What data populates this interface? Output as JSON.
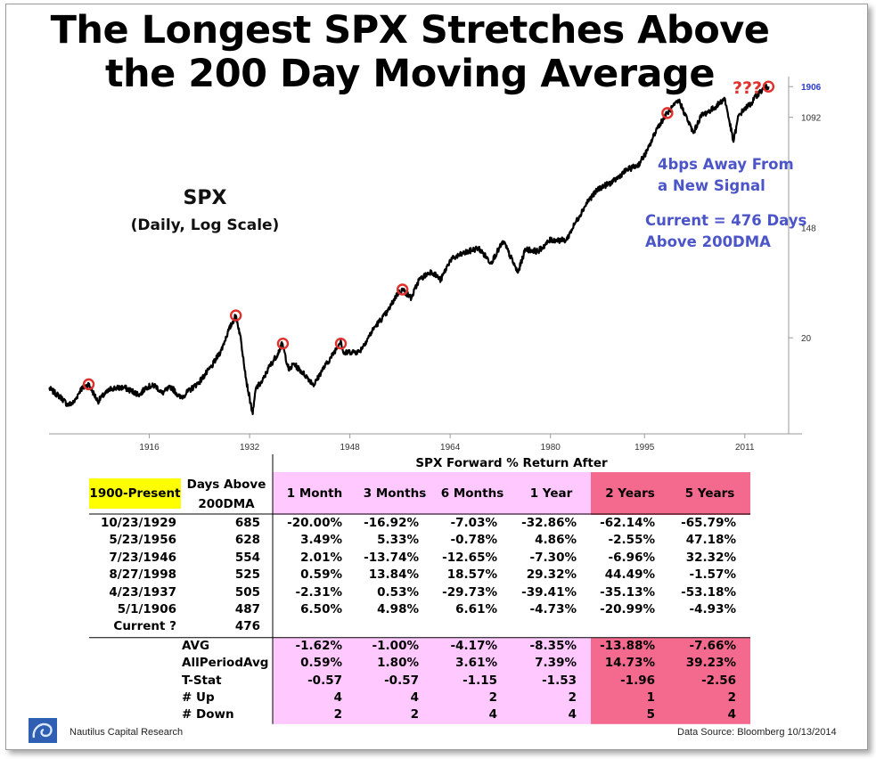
{
  "title_line1": "The Longest SPX Stretches Above",
  "title_line2": "the 200 Day Moving Average",
  "question_marks": "???",
  "spx_label": "SPX",
  "spx_sublabel": "(Daily, Log Scale)",
  "note1_line1": "4bps Away From",
  "note1_line2": "a New Signal",
  "note2_line1": "Current = 476 Days",
  "note2_line2": "Above 200DMA",
  "colors": {
    "line": "#000000",
    "circle": "#e0302c",
    "note": "#4b55c8",
    "last_tick": "#2a3ad0",
    "yellow": "#ffff00",
    "pink": "#ffc8ff",
    "red": "#f46a8e"
  },
  "chart_data": {
    "type": "line",
    "title": "The Longest SPX Stretches Above the 200 Day Moving Average",
    "series": [
      {
        "name": "SPX",
        "scale": "log",
        "x": [
          1900.0,
          1902.0,
          1903.0,
          1904.0,
          1905.0,
          1906.33,
          1907.8,
          1908.5,
          1910.0,
          1912.0,
          1914.5,
          1915.5,
          1917.0,
          1918.0,
          1919.5,
          1921.0,
          1924.0,
          1926.0,
          1927.5,
          1928.5,
          1929.8,
          1930.5,
          1931.0,
          1931.5,
          1932.5,
          1933.0,
          1934.0,
          1935.0,
          1936.5,
          1937.2,
          1938.3,
          1939.0,
          1941.0,
          1942.3,
          1943.5,
          1945.0,
          1946.55,
          1947.0,
          1948.0,
          1949.5,
          1950.5,
          1952.0,
          1954.0,
          1955.5,
          1956.4,
          1957.8,
          1959.0,
          1961.0,
          1962.5,
          1964.0,
          1966.0,
          1968.5,
          1970.5,
          1972.5,
          1974.8,
          1976.0,
          1978.0,
          1980.0,
          1982.5,
          1984.0,
          1986.0,
          1987.7,
          1990.0,
          1992.0,
          1994.0,
          1995.5,
          1997.0,
          1998.65,
          2000.5,
          2002.8,
          2004.0,
          2006.0,
          2007.8,
          2009.2,
          2010.0,
          2011.0,
          2012.0,
          2013.0,
          2014.0,
          2014.8
        ],
        "values": [
          8.0,
          6.7,
          5.9,
          6.2,
          7.8,
          8.6,
          6.3,
          6.9,
          8.0,
          8.1,
          7.1,
          8.2,
          8.4,
          7.3,
          8.2,
          6.7,
          9.0,
          12.0,
          16.0,
          22.0,
          30.0,
          21.0,
          14.0,
          9.0,
          5.0,
          8.0,
          9.0,
          11.5,
          15.0,
          18.0,
          11.0,
          12.5,
          10.0,
          8.5,
          11.0,
          14.0,
          19.0,
          15.0,
          15.5,
          15.5,
          18.5,
          24.5,
          32.0,
          44.0,
          48.0,
          41.0,
          57.0,
          67.0,
          57.0,
          82.0,
          92.0,
          102.0,
          78.0,
          115.0,
          65.0,
          100.0,
          96.0,
          118.0,
          117.0,
          162.0,
          240.0,
          300.0,
          340.0,
          415.0,
          460.0,
          600.0,
          900.0,
          1180.0,
          1480.0,
          820.0,
          1120.0,
          1280.0,
          1540.0,
          700.0,
          1120.0,
          1280.0,
          1400.0,
          1650.0,
          1830.0,
          1906.0
        ]
      }
    ],
    "signal_markers": [
      {
        "date": "5/1/1906",
        "x": 1906.33,
        "value": 8.6
      },
      {
        "date": "10/23/1929",
        "x": 1929.81,
        "value": 30.0
      },
      {
        "date": "4/23/1937",
        "x": 1937.31,
        "value": 18.0
      },
      {
        "date": "7/23/1946",
        "x": 1946.56,
        "value": 18.0
      },
      {
        "date": "5/23/1956",
        "x": 1956.39,
        "value": 48.0
      },
      {
        "date": "8/27/1998",
        "x": 1998.65,
        "value": 1180.0
      },
      {
        "date": "10/13/2014",
        "x": 2014.78,
        "value": 1906.0
      }
    ],
    "x_ticks": [
      "1916",
      "1932",
      "1948",
      "1964",
      "1980",
      "1995",
      "2011"
    ],
    "x_tick_values": [
      1916,
      1932,
      1948,
      1964,
      1980,
      1995,
      2011
    ],
    "y_ticks": [
      "20",
      "148",
      "1092",
      "1906"
    ],
    "y_tick_values": [
      20,
      148,
      1092,
      1906
    ],
    "xlim": [
      1900,
      2018
    ],
    "ylim": [
      3.5,
      2600
    ],
    "y_scale": "log",
    "grid": false
  },
  "table": {
    "header": "SPX Forward % Return After",
    "period_label": "1900-Present",
    "days_label_1": "Days Above",
    "days_label_2": "200DMA",
    "columns": [
      "1 Month",
      "3 Months",
      "6 Months",
      "1 Year",
      "2 Years",
      "5 Years"
    ],
    "rows": [
      {
        "date": "10/23/1929",
        "days": "685",
        "vals": [
          "-20.00%",
          "-16.92%",
          "-7.03%",
          "-32.86%",
          "-62.14%",
          "-65.79%"
        ]
      },
      {
        "date": "5/23/1956",
        "days": "628",
        "vals": [
          "3.49%",
          "5.33%",
          "-0.78%",
          "4.86%",
          "-2.55%",
          "47.18%"
        ]
      },
      {
        "date": "7/23/1946",
        "days": "554",
        "vals": [
          "2.01%",
          "-13.74%",
          "-12.65%",
          "-7.30%",
          "-6.96%",
          "32.32%"
        ]
      },
      {
        "date": "8/27/1998",
        "days": "525",
        "vals": [
          "0.59%",
          "13.84%",
          "18.57%",
          "29.32%",
          "44.49%",
          "-1.57%"
        ]
      },
      {
        "date": "4/23/1937",
        "days": "505",
        "vals": [
          "-2.31%",
          "0.53%",
          "-29.73%",
          "-39.41%",
          "-35.13%",
          "-53.18%"
        ]
      },
      {
        "date": "5/1/1906",
        "days": "487",
        "vals": [
          "6.50%",
          "4.98%",
          "6.61%",
          "-4.73%",
          "-20.99%",
          "-4.93%"
        ]
      },
      {
        "date": "Current ?",
        "days": "476",
        "vals": [
          "",
          "",
          "",
          "",
          "",
          ""
        ]
      }
    ],
    "stats": [
      {
        "label": "AVG",
        "vals": [
          "-1.62%",
          "-1.00%",
          "-4.17%",
          "-8.35%",
          "-13.88%",
          "-7.66%"
        ]
      },
      {
        "label": "AllPeriodAvg",
        "vals": [
          "0.59%",
          "1.80%",
          "3.61%",
          "7.39%",
          "14.73%",
          "39.23%"
        ]
      },
      {
        "label": "T-Stat",
        "vals": [
          "-0.57",
          "-0.57",
          "-1.15",
          "-1.53",
          "-1.96",
          "-2.56"
        ]
      },
      {
        "label": "# Up",
        "vals": [
          "4",
          "4",
          "2",
          "2",
          "1",
          "2"
        ]
      },
      {
        "label": "# Down",
        "vals": [
          "2",
          "2",
          "4",
          "4",
          "5",
          "4"
        ]
      }
    ]
  },
  "footer": {
    "left": "Nautilus Capital Research",
    "right": "Data Source: Bloomberg   10/13/2014"
  }
}
